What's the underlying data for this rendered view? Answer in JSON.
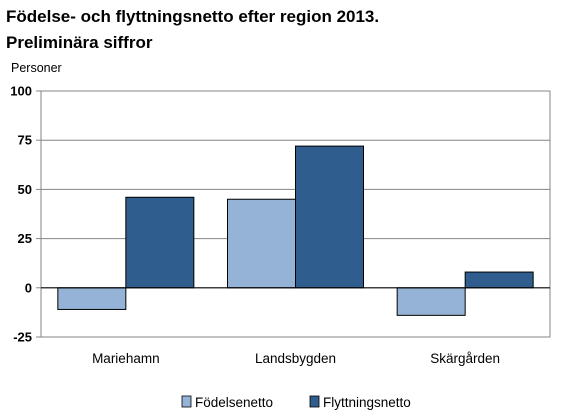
{
  "chart_data": {
    "type": "bar",
    "title": "Födelse- och flyttningsnetto efter region 2013.",
    "subtitle": "Preliminära siffror",
    "ylabel": "Personer",
    "xlabel": "",
    "categories": [
      "Mariehamn",
      "Landsbygden",
      "Skärgården"
    ],
    "series": [
      {
        "name": "Födelsenetto",
        "values": [
          -11,
          45,
          -14
        ],
        "color": "#95b3d7"
      },
      {
        "name": "Flyttningsnetto",
        "values": [
          46,
          72,
          8
        ],
        "color": "#2f5d8e"
      }
    ],
    "ylim": [
      -25,
      100
    ],
    "yticks": [
      -25,
      0,
      25,
      50,
      75,
      100
    ],
    "grid": true,
    "legend": "bottom"
  }
}
